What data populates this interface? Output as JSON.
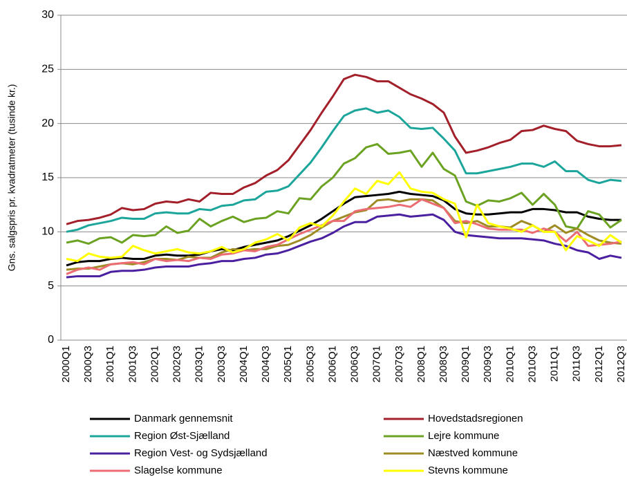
{
  "chart_data": {
    "type": "line",
    "y_label": "Gns. salgspris pr. kvadratmeter (tusinde kr.)",
    "categories": [
      "2000Q1",
      null,
      "2000Q3",
      null,
      "2001Q1",
      null,
      "2001Q3",
      null,
      "2002Q1",
      null,
      "2002Q3",
      null,
      "2003Q1",
      null,
      "2003Q3",
      null,
      "2004Q1",
      null,
      "2004Q3",
      null,
      "2005Q1",
      null,
      "2005Q3",
      null,
      "2006Q1",
      null,
      "2006Q3",
      null,
      "2007Q1",
      null,
      "2007Q3",
      null,
      "2008Q1",
      null,
      "2008Q3",
      null,
      "2009Q1",
      null,
      "2009Q3",
      null,
      "2010Q1",
      null,
      "2010Q3",
      null,
      "2011Q1",
      null,
      "2011Q3",
      null,
      "2012Q1",
      null,
      "2012Q3"
    ],
    "ylim": [
      0,
      30
    ],
    "yticks": [
      0,
      5,
      10,
      15,
      20,
      25,
      30
    ],
    "grid": true,
    "legend": "bottom",
    "series": [
      {
        "name": "Danmark gennemsnit",
        "color": "#000000",
        "values": [
          6.9,
          7.2,
          7.3,
          7.3,
          7.5,
          7.6,
          7.5,
          7.5,
          7.8,
          7.9,
          7.8,
          7.8,
          7.9,
          8.2,
          8.4,
          8.3,
          8.6,
          8.8,
          9.0,
          9.2,
          9.6,
          10.1,
          10.6,
          11.2,
          11.9,
          12.6,
          13.2,
          13.3,
          13.4,
          13.5,
          13.7,
          13.5,
          13.4,
          13.3,
          12.9,
          12.1,
          11.7,
          11.6,
          11.6,
          11.7,
          11.8,
          11.8,
          12.1,
          12.1,
          12.0,
          11.8,
          11.8,
          11.4,
          11.2,
          11.1,
          11.1
        ]
      },
      {
        "name": "Hovedstadsregionen",
        "color": "#a3202b",
        "values": [
          10.7,
          11.0,
          11.1,
          11.3,
          11.6,
          12.2,
          12.0,
          12.1,
          12.6,
          12.8,
          12.7,
          13.0,
          12.8,
          13.6,
          13.5,
          13.5,
          14.1,
          14.5,
          15.2,
          15.7,
          16.6,
          18.0,
          19.4,
          21.0,
          22.5,
          24.1,
          24.5,
          24.3,
          23.9,
          23.9,
          23.3,
          22.7,
          22.3,
          21.8,
          21.0,
          18.8,
          17.3,
          17.5,
          17.8,
          18.2,
          18.5,
          19.3,
          19.4,
          19.8,
          19.5,
          19.3,
          18.4,
          18.1,
          17.9,
          17.9,
          18.0
        ]
      },
      {
        "name": "Region Øst-Sjælland",
        "color": "#1ba59b",
        "values": [
          10.0,
          10.2,
          10.6,
          10.8,
          11.0,
          11.3,
          11.2,
          11.2,
          11.7,
          11.8,
          11.7,
          11.7,
          12.1,
          12.0,
          12.4,
          12.5,
          12.9,
          13.0,
          13.7,
          13.8,
          14.2,
          15.3,
          16.4,
          17.8,
          19.3,
          20.7,
          21.2,
          21.4,
          21.0,
          21.2,
          20.6,
          19.6,
          19.5,
          19.6,
          18.6,
          17.5,
          15.4,
          15.4,
          15.6,
          15.8,
          16.0,
          16.3,
          16.3,
          16.0,
          16.5,
          15.6,
          15.6,
          14.8,
          14.5,
          14.8,
          14.7
        ]
      },
      {
        "name": "Lejre kommune",
        "color": "#6ba222",
        "values": [
          9.0,
          9.2,
          8.9,
          9.4,
          9.5,
          9.0,
          9.7,
          9.6,
          9.7,
          10.5,
          9.9,
          10.1,
          11.2,
          10.5,
          11.0,
          11.4,
          10.9,
          11.2,
          11.3,
          11.9,
          11.7,
          13.1,
          13.0,
          14.2,
          15.0,
          16.3,
          16.8,
          17.8,
          18.1,
          17.2,
          17.3,
          17.5,
          16.0,
          17.3,
          15.8,
          15.2,
          12.8,
          12.4,
          12.9,
          12.8,
          13.1,
          13.6,
          12.5,
          13.5,
          12.5,
          10.5,
          10.3,
          11.9,
          11.6,
          10.4,
          11.1
        ]
      },
      {
        "name": "Region Vest- og Sydsjælland",
        "color": "#4b20a0",
        "values": [
          5.8,
          5.9,
          5.9,
          5.9,
          6.3,
          6.4,
          6.4,
          6.5,
          6.7,
          6.8,
          6.8,
          6.8,
          7.0,
          7.1,
          7.3,
          7.3,
          7.5,
          7.6,
          7.9,
          8.0,
          8.3,
          8.7,
          9.1,
          9.4,
          9.9,
          10.5,
          10.9,
          10.9,
          11.4,
          11.5,
          11.6,
          11.4,
          11.5,
          11.6,
          11.1,
          10.0,
          9.7,
          9.6,
          9.5,
          9.4,
          9.4,
          9.4,
          9.3,
          9.2,
          8.9,
          8.7,
          8.3,
          8.1,
          7.5,
          7.8,
          7.6
        ]
      },
      {
        "name": "Næstved kommune",
        "color": "#9e8b24",
        "values": [
          6.5,
          6.6,
          6.6,
          6.8,
          7.0,
          7.1,
          7.0,
          7.2,
          7.5,
          7.5,
          7.4,
          7.7,
          7.6,
          7.6,
          8.1,
          8.4,
          8.3,
          8.4,
          8.4,
          8.7,
          8.8,
          9.2,
          9.7,
          10.4,
          11.0,
          11.4,
          11.8,
          12.0,
          12.9,
          13.0,
          12.8,
          13.0,
          13.0,
          12.9,
          12.2,
          11.0,
          10.8,
          11.0,
          10.5,
          10.5,
          10.4,
          11.0,
          10.6,
          10.0,
          10.6,
          9.9,
          10.3,
          9.7,
          9.2,
          9.0,
          8.9
        ]
      },
      {
        "name": "Slagelse kommune",
        "color": "#ec6c74",
        "values": [
          6.1,
          6.5,
          6.7,
          6.5,
          7.0,
          7.1,
          7.2,
          7.0,
          7.5,
          7.3,
          7.4,
          7.3,
          7.6,
          7.5,
          7.9,
          8.0,
          8.3,
          8.2,
          8.6,
          8.8,
          9.3,
          9.8,
          10.2,
          10.6,
          11.0,
          11.0,
          11.9,
          12.1,
          12.2,
          12.3,
          12.5,
          12.3,
          13.0,
          12.6,
          12.2,
          10.8,
          11.0,
          10.7,
          10.3,
          10.2,
          10.2,
          10.2,
          9.9,
          10.3,
          10.0,
          9.1,
          10.0,
          8.7,
          8.8,
          8.9,
          9.1
        ]
      },
      {
        "name": "Stevns kommune",
        "color": "#ffff00",
        "values": [
          7.5,
          7.3,
          8.0,
          7.7,
          7.6,
          7.7,
          8.7,
          8.3,
          8.0,
          8.2,
          8.4,
          8.1,
          8.0,
          8.2,
          8.6,
          8.1,
          8.4,
          9.0,
          9.3,
          9.8,
          9.2,
          10.4,
          10.8,
          10.5,
          11.5,
          12.8,
          14.0,
          13.5,
          14.7,
          14.4,
          15.5,
          14.0,
          13.7,
          13.6,
          13.0,
          12.6,
          9.5,
          12.5,
          10.8,
          10.5,
          10.3,
          10.0,
          10.6,
          10.0,
          10.0,
          8.3,
          9.6,
          9.2,
          8.7,
          9.7,
          9.0
        ]
      }
    ]
  }
}
